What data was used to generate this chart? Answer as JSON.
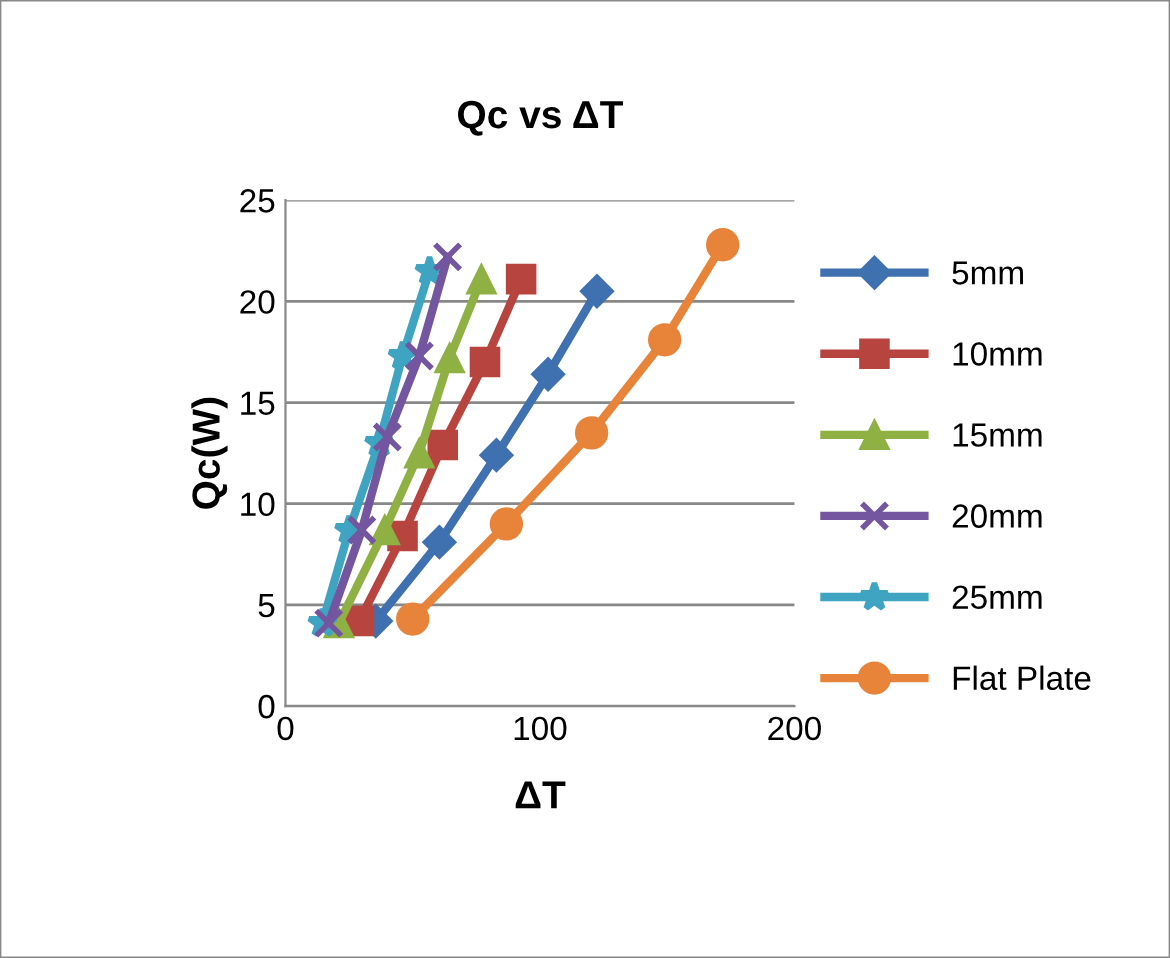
{
  "chart_data": {
    "type": "line",
    "title": "Qc vs ΔT",
    "xlabel": "ΔT",
    "ylabel": "Qc(W)",
    "xlim": [
      0,
      200
    ],
    "xticks": [
      0,
      100,
      200
    ],
    "ylim": [
      0,
      25
    ],
    "yticks": [
      0,
      5,
      10,
      15,
      20,
      25
    ],
    "grid": "y",
    "legend": "right",
    "series": [
      {
        "name": "5mm",
        "color": "#3f70b0",
        "marker": "diamond",
        "x": [
          35.5,
          60.5,
          82.9,
          103.2,
          122.4
        ],
        "values": [
          4.2,
          8.1,
          12.4,
          16.4,
          20.5
        ]
      },
      {
        "name": "10mm",
        "color": "#b8443f",
        "marker": "square",
        "x": [
          28.9,
          46,
          61.8,
          78.4,
          92.6
        ],
        "values": [
          4.2,
          8.4,
          12.9,
          17.0,
          21.1
        ]
      },
      {
        "name": "15mm",
        "color": "#8fb144",
        "marker": "triangle",
        "x": [
          21,
          39,
          52.6,
          64.5,
          77
        ],
        "values": [
          4.1,
          8.7,
          12.5,
          17.2,
          21.1
        ]
      },
      {
        "name": "20mm",
        "color": "#7355a0",
        "marker": "cross",
        "x": [
          17,
          30,
          40,
          52.6,
          63.7
        ],
        "values": [
          4.1,
          8.7,
          13.3,
          17.3,
          22.2
        ]
      },
      {
        "name": "25mm",
        "color": "#3ea4c1",
        "marker": "star",
        "x": [
          14.5,
          25,
          36.8,
          46,
          56.6
        ],
        "values": [
          4.1,
          8.7,
          13.0,
          17.3,
          21.5
        ]
      },
      {
        "name": "Flat Plate",
        "color": "#e8833a",
        "marker": "circle",
        "x": [
          50,
          86.8,
          120.3,
          149,
          171.8
        ],
        "values": [
          4.3,
          9.0,
          13.5,
          18.1,
          22.8
        ]
      }
    ]
  }
}
